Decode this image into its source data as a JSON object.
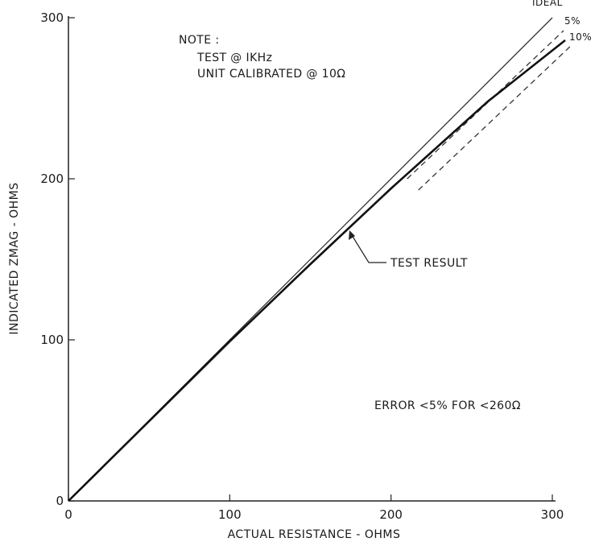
{
  "chart_data": {
    "type": "line",
    "title": "",
    "xlabel": "ACTUAL RESISTANCE - OHMS",
    "ylabel": "INDICATED ZMAG - OHMS",
    "xlim": [
      0,
      300
    ],
    "ylim": [
      0,
      300
    ],
    "xticks": [
      0,
      100,
      200,
      300
    ],
    "yticks": [
      0,
      100,
      200,
      300
    ],
    "grid": false,
    "series": [
      {
        "name": "IDEAL",
        "x": [
          0,
          300
        ],
        "y": [
          0,
          300
        ],
        "style": "solid-thin",
        "color": "#333333"
      },
      {
        "name": "5%",
        "x": [
          210,
          307
        ],
        "y": [
          200,
          292
        ],
        "style": "dashed",
        "color": "#333333"
      },
      {
        "name": "10%",
        "x": [
          217,
          312
        ],
        "y": [
          193,
          283
        ],
        "style": "dashed",
        "color": "#333333"
      },
      {
        "name": "TEST RESULT",
        "x": [
          0,
          100,
          150,
          200,
          260,
          308
        ],
        "y": [
          0,
          99,
          147,
          194,
          248,
          286
        ],
        "style": "solid-thick",
        "color": "#111111"
      }
    ],
    "annotations": {
      "note_title": "NOTE :",
      "note_line1": "TEST @ IKHz",
      "note_line2": "UNIT CALIBRATED @ 10Ω",
      "test_result_label": "TEST RESULT",
      "error_text": "ERROR <5% FOR <260Ω"
    }
  }
}
